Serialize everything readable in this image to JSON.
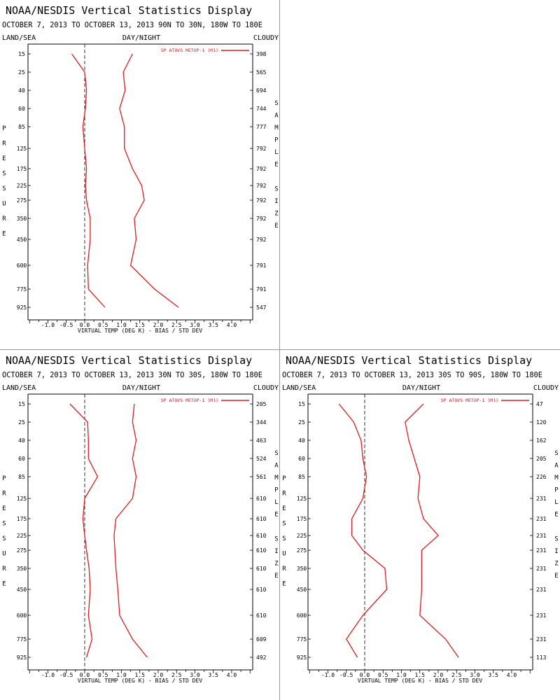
{
  "pressure_label": "PRESSURE",
  "sample_label": "SAMPLE SIZE",
  "theme": {
    "line_color": "#e41a1c",
    "zero_line_color": "#000000",
    "axis_color": "#000000"
  },
  "chart_data": [
    {
      "type": "line",
      "title": "NOAA/NESDIS Vertical Statistics Display",
      "subtitle": "OCTOBER 7, 2013 TO OCTOBER 13, 2013 90N TO 30N, 180W TO 180E",
      "label_left": "LAND/SEA",
      "label_center": "DAY/NIGHT",
      "label_right": "CLOUDY",
      "xlabel": "VIRTUAL TEMP (DEG K) - BIAS / STD DEV",
      "legend": "SP ATOVS METOP-1 (M1)",
      "legend_position": "top-right",
      "xlim": [
        -1.5,
        4.5
      ],
      "x_ticks": [
        "-1.0",
        "-0.5",
        "0.0",
        "0.5",
        "1.0",
        "1.5",
        "2.0",
        "2.5",
        "3.0",
        "3.5",
        "4.0"
      ],
      "pressure_levels": [
        15,
        25,
        40,
        60,
        85,
        125,
        175,
        225,
        275,
        350,
        450,
        600,
        775,
        925
      ],
      "sample_size": [
        398,
        565,
        694,
        744,
        777,
        792,
        792,
        792,
        792,
        792,
        792,
        791,
        791,
        547
      ],
      "series": [
        {
          "values": [
            -0.35,
            0.0,
            0.05,
            0.02,
            -0.05,
            0.0,
            0.05,
            0.02,
            0.05,
            0.15,
            0.15,
            0.08,
            0.1,
            0.55
          ]
        },
        {
          "values": [
            1.3,
            1.05,
            1.1,
            0.95,
            1.08,
            1.08,
            1.3,
            1.55,
            1.62,
            1.35,
            1.4,
            1.25,
            1.9,
            2.55
          ]
        }
      ]
    },
    {
      "type": "line",
      "title": "NOAA/NESDIS Vertical Statistics Display",
      "subtitle": "OCTOBER 7, 2013 TO OCTOBER 13, 2013 30N TO 30S, 180W TO 180E",
      "label_left": "LAND/SEA",
      "label_center": "DAY/NIGHT",
      "label_right": "CLOUDY",
      "xlabel": "VIRTUAL TEMP (DEG K) - BIAS / STD DEV",
      "legend": "SP ATOVS METOP-1 (M1)",
      "legend_position": "top-right",
      "xlim": [
        -1.5,
        4.5
      ],
      "x_ticks": [
        "-1.0",
        "-0.5",
        "0.0",
        "0.5",
        "1.0",
        "1.5",
        "2.0",
        "2.5",
        "3.0",
        "3.5",
        "4.0"
      ],
      "pressure_levels": [
        15,
        25,
        40,
        60,
        85,
        125,
        175,
        225,
        275,
        350,
        450,
        600,
        775,
        925
      ],
      "sample_size": [
        205,
        344,
        463,
        524,
        561,
        610,
        610,
        610,
        610,
        610,
        610,
        610,
        609,
        492
      ],
      "series": [
        {
          "values": [
            -0.4,
            0.08,
            0.1,
            0.1,
            0.35,
            0.0,
            -0.05,
            0.0,
            0.05,
            0.12,
            0.15,
            0.1,
            0.2,
            0.05
          ]
        },
        {
          "values": [
            1.35,
            1.3,
            1.4,
            1.3,
            1.4,
            1.3,
            0.85,
            0.8,
            0.82,
            0.85,
            0.9,
            0.95,
            1.3,
            1.7
          ]
        }
      ]
    },
    {
      "type": "line",
      "title": "NOAA/NESDIS Vertical Statistics Display",
      "subtitle": "OCTOBER 7, 2013 TO OCTOBER 13, 2013 30S TO 90S, 180W TO 180E",
      "label_left": "LAND/SEA",
      "label_center": "DAY/NIGHT",
      "label_right": "CLOUDY",
      "xlabel": "VIRTUAL TEMP (DEG K) - BIAS / STD DEV",
      "legend": "SP ATOVS METOP-1 (M1)",
      "legend_position": "top-right",
      "xlim": [
        -1.5,
        4.5
      ],
      "x_ticks": [
        "-1.0",
        "-0.5",
        "0.0",
        "0.5",
        "1.0",
        "1.5",
        "2.0",
        "2.5",
        "3.0",
        "3.5",
        "4.0"
      ],
      "pressure_levels": [
        15,
        25,
        40,
        60,
        85,
        125,
        175,
        225,
        275,
        350,
        450,
        600,
        775,
        925
      ],
      "sample_size": [
        47,
        120,
        162,
        205,
        226,
        231,
        231,
        231,
        231,
        231,
        231,
        231,
        231,
        113
      ],
      "series": [
        {
          "values": [
            -0.7,
            -0.3,
            -0.1,
            -0.05,
            0.05,
            -0.05,
            -0.35,
            -0.35,
            -0.05,
            0.55,
            0.6,
            -0.05,
            -0.5,
            -0.2
          ]
        },
        {
          "values": [
            1.6,
            1.1,
            1.2,
            1.35,
            1.5,
            1.45,
            1.6,
            2.0,
            1.55,
            1.55,
            1.55,
            1.5,
            2.2,
            2.55
          ]
        }
      ]
    }
  ]
}
